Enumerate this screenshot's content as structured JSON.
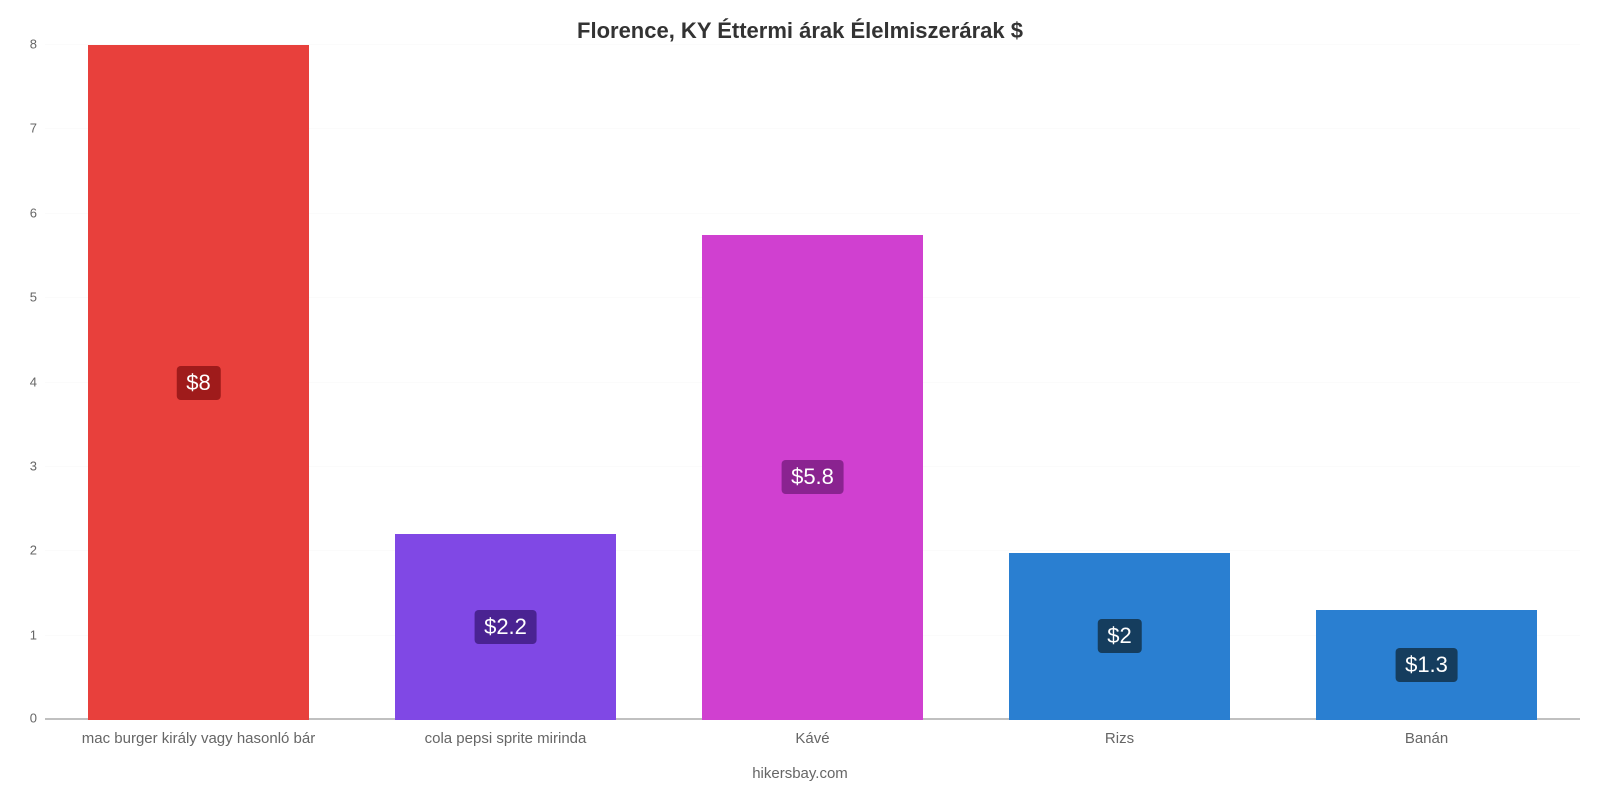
{
  "chart": {
    "type": "bar",
    "title": "Florence, KY Éttermi árak Élelmiszerárak $",
    "title_fontsize": 22,
    "title_color": "#333333",
    "subtitle": "hikersbay.com",
    "background_color": "#ffffff",
    "grid_color": "#fbfbfb",
    "axis_line_color": "#e6e6e6",
    "baseline_color": "#c0c0c0",
    "tick_label_color": "#666666",
    "tick_fontsize": 13,
    "x_label_fontsize": 15,
    "y": {
      "min": 0,
      "max": 8,
      "ticks": [
        0,
        1,
        2,
        3,
        4,
        5,
        6,
        7,
        8
      ]
    },
    "bar_width": 0.72,
    "inner_fontsize": 22,
    "categories": [
      "mac burger király vagy hasonló bár",
      "cola pepsi sprite mirinda",
      "Kávé",
      "Rizs",
      "Banán"
    ],
    "values": [
      8,
      2.2,
      5.75,
      1.98,
      1.3
    ],
    "display_values": [
      "$8",
      "$2.2",
      "$5.8",
      "$2",
      "$1.3"
    ],
    "bar_colors": [
      "#e8403c",
      "#8048e5",
      "#d040d0",
      "#2a7fd1",
      "#2a7fd1"
    ],
    "badge_colors": [
      "#9f1b1b",
      "#4a2392",
      "#8a2390",
      "#153d5e",
      "#153d5e"
    ]
  }
}
